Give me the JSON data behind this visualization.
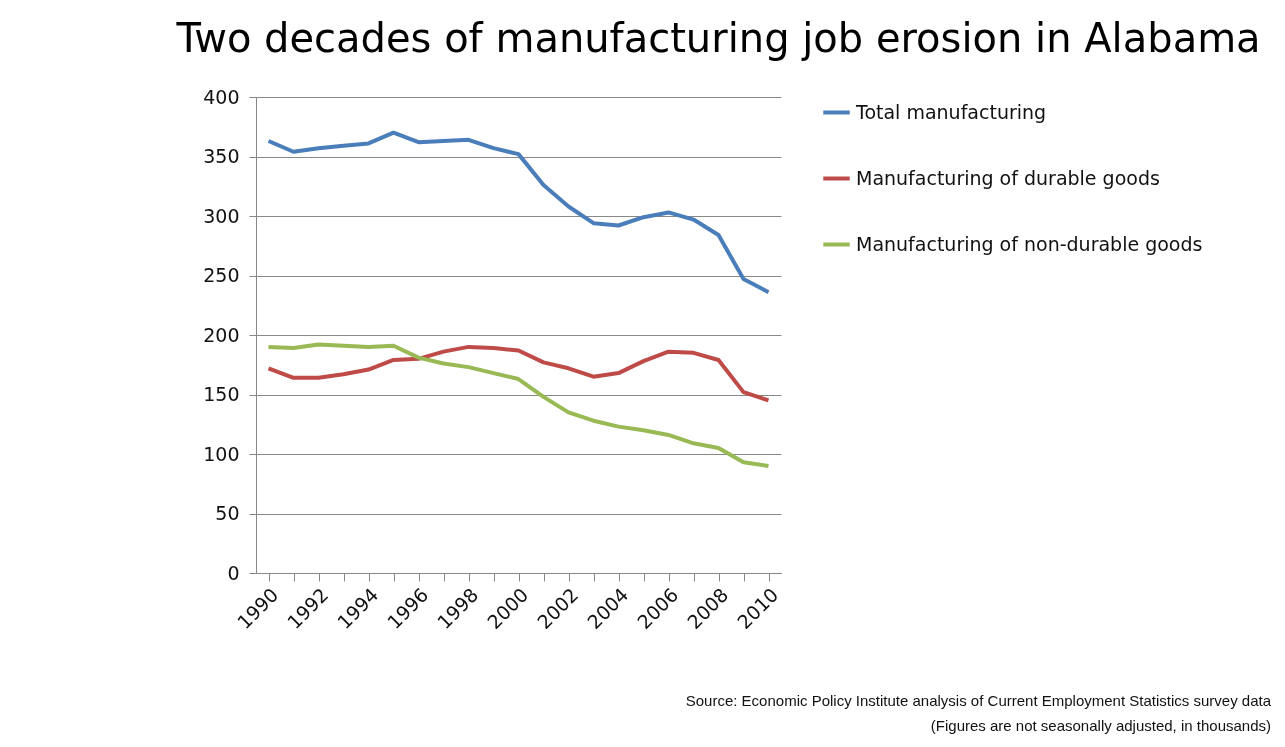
{
  "chart_data": {
    "type": "line",
    "title": "Two decades of manufacturing job erosion in Alabama",
    "categories": [
      "1990",
      null,
      "1992",
      null,
      "1994",
      null,
      "1996",
      null,
      "1998",
      null,
      "2000",
      null,
      "2002",
      null,
      "2004",
      null,
      "2006",
      null,
      "2008",
      null,
      "2010"
    ],
    "series": [
      {
        "name": "Total manufacturing",
        "color": "#4a7ebb",
        "values": [
          363,
          354,
          357,
          359,
          361,
          370,
          362,
          363,
          364,
          357,
          352,
          326,
          308,
          294,
          292,
          299,
          303,
          297,
          284,
          247,
          236
        ]
      },
      {
        "name": "Manufacturing of durable goods",
        "color": "#be4b48",
        "values": [
          172,
          164,
          164,
          167,
          171,
          179,
          180,
          186,
          190,
          189,
          187,
          177,
          172,
          165,
          168,
          178,
          186,
          185,
          179,
          152,
          145
        ]
      },
      {
        "name": "Manufacturing of non-durable goods",
        "color": "#98b954",
        "values": [
          190,
          189,
          192,
          191,
          190,
          191,
          181,
          176,
          173,
          168,
          163,
          148,
          135,
          128,
          123,
          120,
          116,
          109,
          105,
          93,
          90
        ]
      }
    ],
    "ylim": [
      0,
      400
    ],
    "yticks": [
      0,
      50,
      100,
      150,
      200,
      250,
      300,
      350,
      400
    ],
    "grid": "y",
    "legend": "right",
    "annotations": [
      "Source: Economic Policy Institute analysis of Current Employment Statistics survey data",
      "(Figures are not seasonally adjusted, in thousands)"
    ]
  }
}
